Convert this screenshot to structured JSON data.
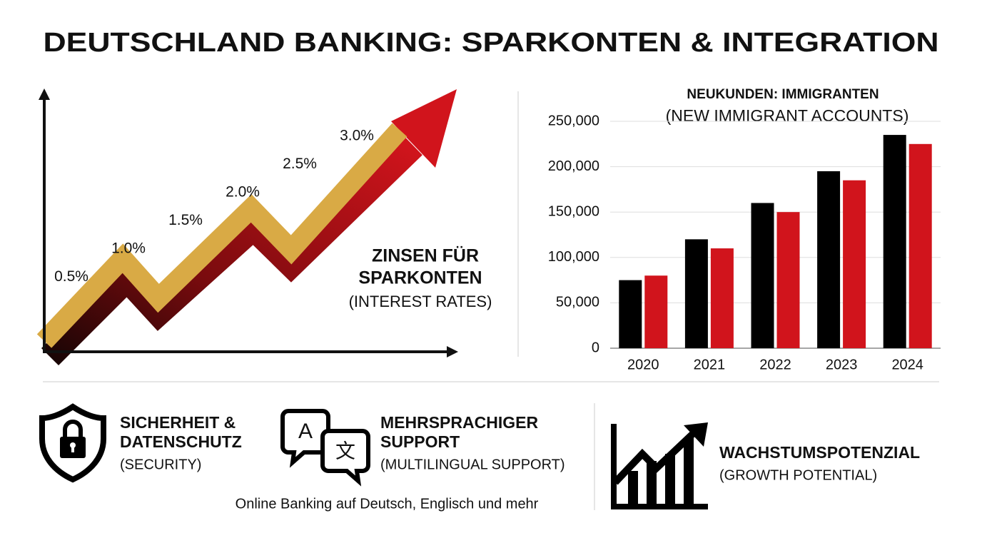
{
  "title": "DEUTSCHLAND BANKING: SPARKONTEN & INTEGRATION",
  "chart_data": [
    {
      "type": "line",
      "title": "ZINSEN FÜR SPARKONTEN",
      "subtitle": "(INTEREST RATES)",
      "values": [
        0.5,
        1.0,
        1.5,
        2.0,
        2.5,
        3.0
      ],
      "value_labels": [
        "0.5%",
        "1.0%",
        "1.5%",
        "2.0%",
        "2.5%",
        "3.0%"
      ],
      "colors": [
        "#d9aa45",
        "#d1141c"
      ]
    },
    {
      "type": "bar",
      "title": "NEUKUNDEN: IMMIGRANTEN",
      "subtitle": "(NEW IMMIGRANT ACCOUNTS)",
      "categories": [
        "2020",
        "2021",
        "2022",
        "2023",
        "2024"
      ],
      "series": [
        {
          "color": "#000000",
          "values": [
            75000,
            120000,
            160000,
            195000,
            235000
          ]
        },
        {
          "color": "#d1141c",
          "values": [
            80000,
            110000,
            150000,
            185000,
            225000
          ]
        }
      ],
      "ylim": [
        0,
        250000
      ],
      "yticks": [
        0,
        {
          "value": 50000,
          "label": "50,000"
        },
        {
          "value": 100000,
          "label": "100,000"
        },
        {
          "value": 150000,
          "label": "150,000"
        },
        {
          "value": 200000,
          "label": "200,000"
        },
        {
          "value": 250000,
          "label": "250,000"
        }
      ],
      "grid": true
    }
  ],
  "features": [
    {
      "title_lines": [
        "SICHERHEIT &",
        "DATENSCHUTZ"
      ],
      "subtitle": "(SECURITY)"
    },
    {
      "title_lines": [
        "MEHRSPRACHIGER",
        "SUPPORT"
      ],
      "subtitle": "(MULTILINGUAL SUPPORT)"
    },
    {
      "title_lines": [
        "WACHSTUMSPOTENZIAL"
      ],
      "subtitle": "(GROWTH POTENTIAL)"
    }
  ],
  "note": "Online Banking auf Deutsch, Englisch und mehr"
}
